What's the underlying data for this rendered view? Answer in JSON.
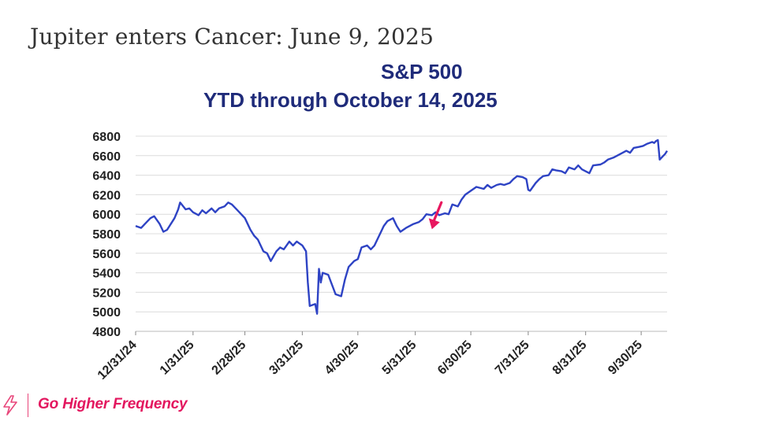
{
  "slide": {
    "title": "Jupiter enters Cancer: June 9, 2025"
  },
  "brand": {
    "name": "Go Higher Frequency",
    "icon": "lightning-bolt-icon",
    "color": "#e3175f"
  },
  "colors": {
    "line": "#2e43c4",
    "title": "#1f2b7a",
    "arrow": "#e8175f",
    "grid": "#dcdcdc"
  },
  "chart_data": {
    "type": "line",
    "title": "S&P 500",
    "subtitle": "YTD through October 14, 2025",
    "ylim": [
      4800,
      6800
    ],
    "y_ticks": [
      4800,
      5000,
      5200,
      5400,
      5600,
      5800,
      6000,
      6200,
      6400,
      6600,
      6800
    ],
    "y_tick_labels": [
      "4800",
      "5000",
      "5200",
      "5400",
      "5600",
      "5800",
      "6000",
      "6200",
      "6400",
      "6600",
      "6800"
    ],
    "x_tick_labels": [
      "12/31/24",
      "1/31/25",
      "2/28/25",
      "3/31/25",
      "4/30/25",
      "5/31/25",
      "6/30/25",
      "7/31/25",
      "8/31/25",
      "9/30/25"
    ],
    "x_tick_dates": [
      "2024-12-31",
      "2025-01-31",
      "2025-02-28",
      "2025-03-31",
      "2025-04-30",
      "2025-05-31",
      "2025-06-30",
      "2025-07-31",
      "2025-08-31",
      "2025-09-30"
    ],
    "xlim": [
      "2024-12-31",
      "2025-10-14"
    ],
    "grid": true,
    "annotation": {
      "type": "arrow",
      "date": "2025-06-09",
      "value": 5830
    },
    "series": [
      {
        "x": [
          "2024-12-31",
          "2025-01-03",
          "2025-01-06",
          "2025-01-08",
          "2025-01-10",
          "2025-01-13",
          "2025-01-15",
          "2025-01-17",
          "2025-01-21",
          "2025-01-23",
          "2025-01-24",
          "2025-01-27",
          "2025-01-29",
          "2025-01-31",
          "2025-02-03",
          "2025-02-05",
          "2025-02-07",
          "2025-02-10",
          "2025-02-12",
          "2025-02-14",
          "2025-02-17",
          "2025-02-19",
          "2025-02-21",
          "2025-02-24",
          "2025-02-26",
          "2025-02-28",
          "2025-03-03",
          "2025-03-05",
          "2025-03-07",
          "2025-03-10",
          "2025-03-12",
          "2025-03-14",
          "2025-03-17",
          "2025-03-19",
          "2025-03-21",
          "2025-03-24",
          "2025-03-26",
          "2025-03-28",
          "2025-03-31",
          "2025-04-02",
          "2025-04-03",
          "2025-04-04",
          "2025-04-07",
          "2025-04-08",
          "2025-04-09",
          "2025-04-10",
          "2025-04-11",
          "2025-04-14",
          "2025-04-16",
          "2025-04-18",
          "2025-04-21",
          "2025-04-23",
          "2025-04-25",
          "2025-04-28",
          "2025-04-30",
          "2025-05-02",
          "2025-05-05",
          "2025-05-07",
          "2025-05-09",
          "2025-05-12",
          "2025-05-14",
          "2025-05-16",
          "2025-05-19",
          "2025-05-21",
          "2025-05-23",
          "2025-05-26",
          "2025-05-28",
          "2025-05-30",
          "2025-06-02",
          "2025-06-04",
          "2025-06-06",
          "2025-06-09",
          "2025-06-11",
          "2025-06-13",
          "2025-06-16",
          "2025-06-18",
          "2025-06-20",
          "2025-06-23",
          "2025-06-25",
          "2025-06-27",
          "2025-06-30",
          "2025-07-03",
          "2025-07-07",
          "2025-07-09",
          "2025-07-11",
          "2025-07-14",
          "2025-07-16",
          "2025-07-18",
          "2025-07-21",
          "2025-07-23",
          "2025-07-25",
          "2025-07-28",
          "2025-07-30",
          "2025-07-31",
          "2025-08-01",
          "2025-08-04",
          "2025-08-06",
          "2025-08-08",
          "2025-08-11",
          "2025-08-13",
          "2025-08-15",
          "2025-08-18",
          "2025-08-20",
          "2025-08-22",
          "2025-08-25",
          "2025-08-27",
          "2025-08-29",
          "2025-09-02",
          "2025-09-04",
          "2025-09-08",
          "2025-09-10",
          "2025-09-12",
          "2025-09-15",
          "2025-09-17",
          "2025-09-19",
          "2025-09-22",
          "2025-09-24",
          "2025-09-26",
          "2025-09-29",
          "2025-10-01",
          "2025-10-03",
          "2025-10-06",
          "2025-10-07",
          "2025-10-08",
          "2025-10-09",
          "2025-10-10",
          "2025-10-13",
          "2025-10-14"
        ],
        "values": [
          5880,
          5860,
          5920,
          5960,
          5980,
          5900,
          5820,
          5840,
          5960,
          6050,
          6120,
          6050,
          6060,
          6020,
          5990,
          6040,
          6010,
          6060,
          6020,
          6060,
          6080,
          6120,
          6100,
          6040,
          6000,
          5960,
          5840,
          5780,
          5740,
          5620,
          5600,
          5520,
          5620,
          5660,
          5640,
          5720,
          5680,
          5720,
          5680,
          5620,
          5300,
          5060,
          5080,
          4980,
          5440,
          5300,
          5400,
          5380,
          5280,
          5180,
          5160,
          5330,
          5460,
          5520,
          5540,
          5660,
          5680,
          5640,
          5680,
          5800,
          5880,
          5930,
          5960,
          5880,
          5820,
          5860,
          5880,
          5900,
          5920,
          5950,
          6000,
          5990,
          6020,
          5990,
          6010,
          6000,
          6100,
          6080,
          6150,
          6200,
          6240,
          6280,
          6260,
          6300,
          6270,
          6300,
          6310,
          6300,
          6320,
          6360,
          6390,
          6380,
          6360,
          6250,
          6240,
          6320,
          6360,
          6390,
          6400,
          6460,
          6450,
          6440,
          6420,
          6480,
          6460,
          6500,
          6460,
          6420,
          6500,
          6510,
          6530,
          6560,
          6580,
          6600,
          6620,
          6650,
          6630,
          6680,
          6690,
          6700,
          6720,
          6740,
          6730,
          6750,
          6760,
          6560,
          6620,
          6650
        ]
      }
    ]
  }
}
